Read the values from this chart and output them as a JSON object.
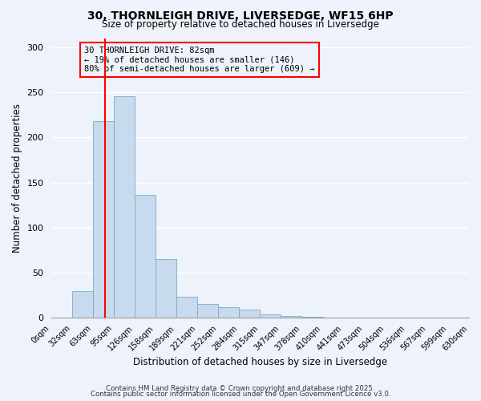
{
  "title": "30, THORNLEIGH DRIVE, LIVERSEDGE, WF15 6HP",
  "subtitle": "Size of property relative to detached houses in Liversedge",
  "xlabel": "Distribution of detached houses by size in Liversedge",
  "ylabel": "Number of detached properties",
  "bar_color": "#c8daed",
  "bar_edge_color": "#7aaac8",
  "background_color": "#eef2fa",
  "grid_color": "white",
  "bin_labels": [
    "0sqm",
    "32sqm",
    "63sqm",
    "95sqm",
    "126sqm",
    "158sqm",
    "189sqm",
    "221sqm",
    "252sqm",
    "284sqm",
    "315sqm",
    "347sqm",
    "378sqm",
    "410sqm",
    "441sqm",
    "473sqm",
    "504sqm",
    "536sqm",
    "567sqm",
    "599sqm",
    "630sqm"
  ],
  "bin_values": [
    0,
    30,
    218,
    246,
    136,
    65,
    23,
    15,
    12,
    9,
    4,
    2,
    1,
    0,
    0,
    0,
    0,
    0,
    0,
    0
  ],
  "ylim": [
    0,
    310
  ],
  "yticks": [
    0,
    50,
    100,
    150,
    200,
    250,
    300
  ],
  "annotation_title": "30 THORNLEIGH DRIVE: 82sqm",
  "annotation_line1": "← 19% of detached houses are smaller (146)",
  "annotation_line2": "80% of semi-detached houses are larger (609) →",
  "footer1": "Contains HM Land Registry data © Crown copyright and database right 2025.",
  "footer2": "Contains public sector information licensed under the Open Government Licence v3.0."
}
